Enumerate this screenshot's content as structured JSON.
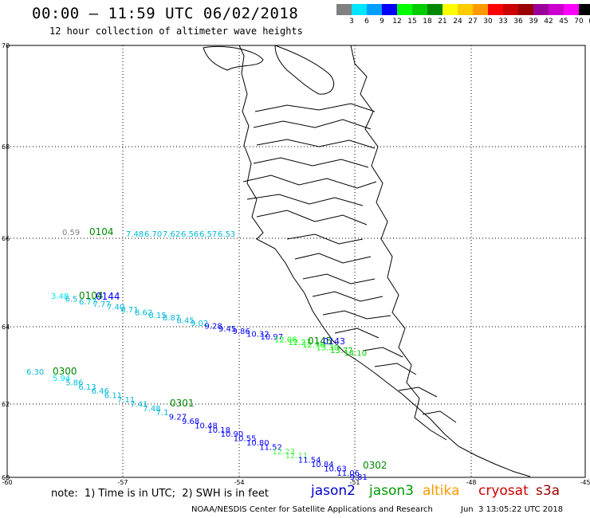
{
  "header": {
    "title": "00:00 — 11:59 UTC 06/02/2018",
    "subtitle": "12 hour collection of altimeter wave heights"
  },
  "legend": {
    "colors": [
      "#808080",
      "#00e5ff",
      "#00a0ff",
      "#0000ff",
      "#00ff00",
      "#00cc00",
      "#008800",
      "#ffff00",
      "#ffcc00",
      "#ff9900",
      "#ff0000",
      "#cc0000",
      "#990000",
      "#990099",
      "#cc00cc",
      "#ff00ff",
      "#000000"
    ],
    "labels": [
      "3",
      "6",
      "9",
      "12",
      "15",
      "18",
      "21",
      "24",
      "27",
      "30",
      "33",
      "36",
      "39",
      "42",
      "45",
      "70",
      "(ft)"
    ]
  },
  "axes": {
    "lat_labels": [
      "70",
      "68",
      "66",
      "64",
      "62",
      "60"
    ],
    "lon_labels": [
      "-60",
      "-57",
      "-54",
      "-51",
      "-48",
      "-45"
    ]
  },
  "tracks": [
    {
      "label": "0104",
      "label_color": "#008800",
      "points": [
        {
          "t": "0.59",
          "c": "#808080"
        },
        {
          "t": "7.48",
          "c": "#00b8d8"
        },
        {
          "t": "6.70",
          "c": "#00b8d8"
        },
        {
          "t": "7.62",
          "c": "#00b8d8"
        },
        {
          "t": "6.56",
          "c": "#00b8d8"
        },
        {
          "t": "6.57",
          "c": "#00b8d8"
        },
        {
          "t": "6.53",
          "c": "#00b8d8"
        }
      ]
    },
    {
      "label": "0144",
      "label_color": "#0000ff",
      "second_label": "0104",
      "second_color": "#008800",
      "points": [
        {
          "t": "3.48",
          "c": "#00e5ff"
        },
        {
          "t": "6.5",
          "c": "#00b8d8"
        },
        {
          "t": "6.77",
          "c": "#00b8d8"
        },
        {
          "t": "7.77",
          "c": "#00b8d8"
        },
        {
          "t": "7.40",
          "c": "#00b8d8"
        },
        {
          "t": "8.71",
          "c": "#00b8d8"
        },
        {
          "t": "8.62",
          "c": "#00b8d8"
        },
        {
          "t": "8.15",
          "c": "#00b8d8"
        },
        {
          "t": "8.87",
          "c": "#00b8d8"
        },
        {
          "t": "8.45",
          "c": "#00b8d8"
        },
        {
          "t": "9.02",
          "c": "#00b8d8"
        },
        {
          "t": "9.28",
          "c": "#0000ff"
        },
        {
          "t": "9.45",
          "c": "#0000ff"
        },
        {
          "t": "9.86",
          "c": "#0000ff"
        },
        {
          "t": "10.32",
          "c": "#0000ff"
        },
        {
          "t": "10.97",
          "c": "#0000ff"
        },
        {
          "t": "12.06",
          "c": "#00ff00"
        },
        {
          "t": "12.27",
          "c": "#00ff00"
        },
        {
          "t": "12.76",
          "c": "#00ff00"
        },
        {
          "t": "13.30",
          "c": "#00ff00"
        },
        {
          "t": "13.77",
          "c": "#00cc00"
        },
        {
          "t": "14.10",
          "c": "#00cc00"
        }
      ]
    },
    {
      "label": "0145",
      "label_color": "#008800",
      "second_label": "0143",
      "second_color": "#0000ff",
      "points": []
    },
    {
      "label": "0300",
      "label_color": "#008800",
      "second_label": "0301",
      "second_color": "#008800",
      "third_label": "0302",
      "third_color": "#008800",
      "points": [
        {
          "t": "6.30",
          "c": "#00b8d8"
        },
        {
          "t": "5.94",
          "c": "#00e5ff"
        },
        {
          "t": "5.86",
          "c": "#00b8d8"
        },
        {
          "t": "6.13",
          "c": "#00b8d8"
        },
        {
          "t": "6.46",
          "c": "#00b8d8"
        },
        {
          "t": "6.11",
          "c": "#00b8d8"
        },
        {
          "t": "7.11",
          "c": "#00b8d8"
        },
        {
          "t": "7.41",
          "c": "#00b8d8"
        },
        {
          "t": "7.48",
          "c": "#00b8d8"
        },
        {
          "t": "7.1",
          "c": "#00b8d8"
        },
        {
          "t": "9.27",
          "c": "#0000ff"
        },
        {
          "t": "9.68",
          "c": "#0000ff"
        },
        {
          "t": "10.48",
          "c": "#0000ff"
        },
        {
          "t": "10.18",
          "c": "#0000ff"
        },
        {
          "t": "10.90",
          "c": "#0000ff"
        },
        {
          "t": "10.55",
          "c": "#0000ff"
        },
        {
          "t": "10.80",
          "c": "#0000ff"
        },
        {
          "t": "11.52",
          "c": "#0000ff"
        },
        {
          "t": "12.23",
          "c": "#55ee55"
        },
        {
          "t": "12.11",
          "c": "#55ee55"
        },
        {
          "t": "11.54",
          "c": "#0000ff"
        },
        {
          "t": "10.84",
          "c": "#0000ff"
        },
        {
          "t": "10.63",
          "c": "#0000ff"
        },
        {
          "t": "11.06",
          "c": "#0000ff"
        },
        {
          "t": "9.81",
          "c": "#0000ff"
        }
      ]
    }
  ],
  "footer": {
    "note": "note:  1) Time is in UTC;  2) SWH is in feet",
    "satellites": [
      {
        "name": "jason2",
        "color": "#0000cc"
      },
      {
        "name": "jason3",
        "color": "#009900"
      },
      {
        "name": "altika",
        "color": "#ff9900"
      },
      {
        "name": "cryosat",
        "color": "#cc0000"
      },
      {
        "name": "s3a",
        "color": "#990000"
      }
    ],
    "credit": "NOAA/NESDIS Center for Satellite Applications and Research",
    "timestamp": "Jun  3 13:05:22 UTC 2018"
  }
}
